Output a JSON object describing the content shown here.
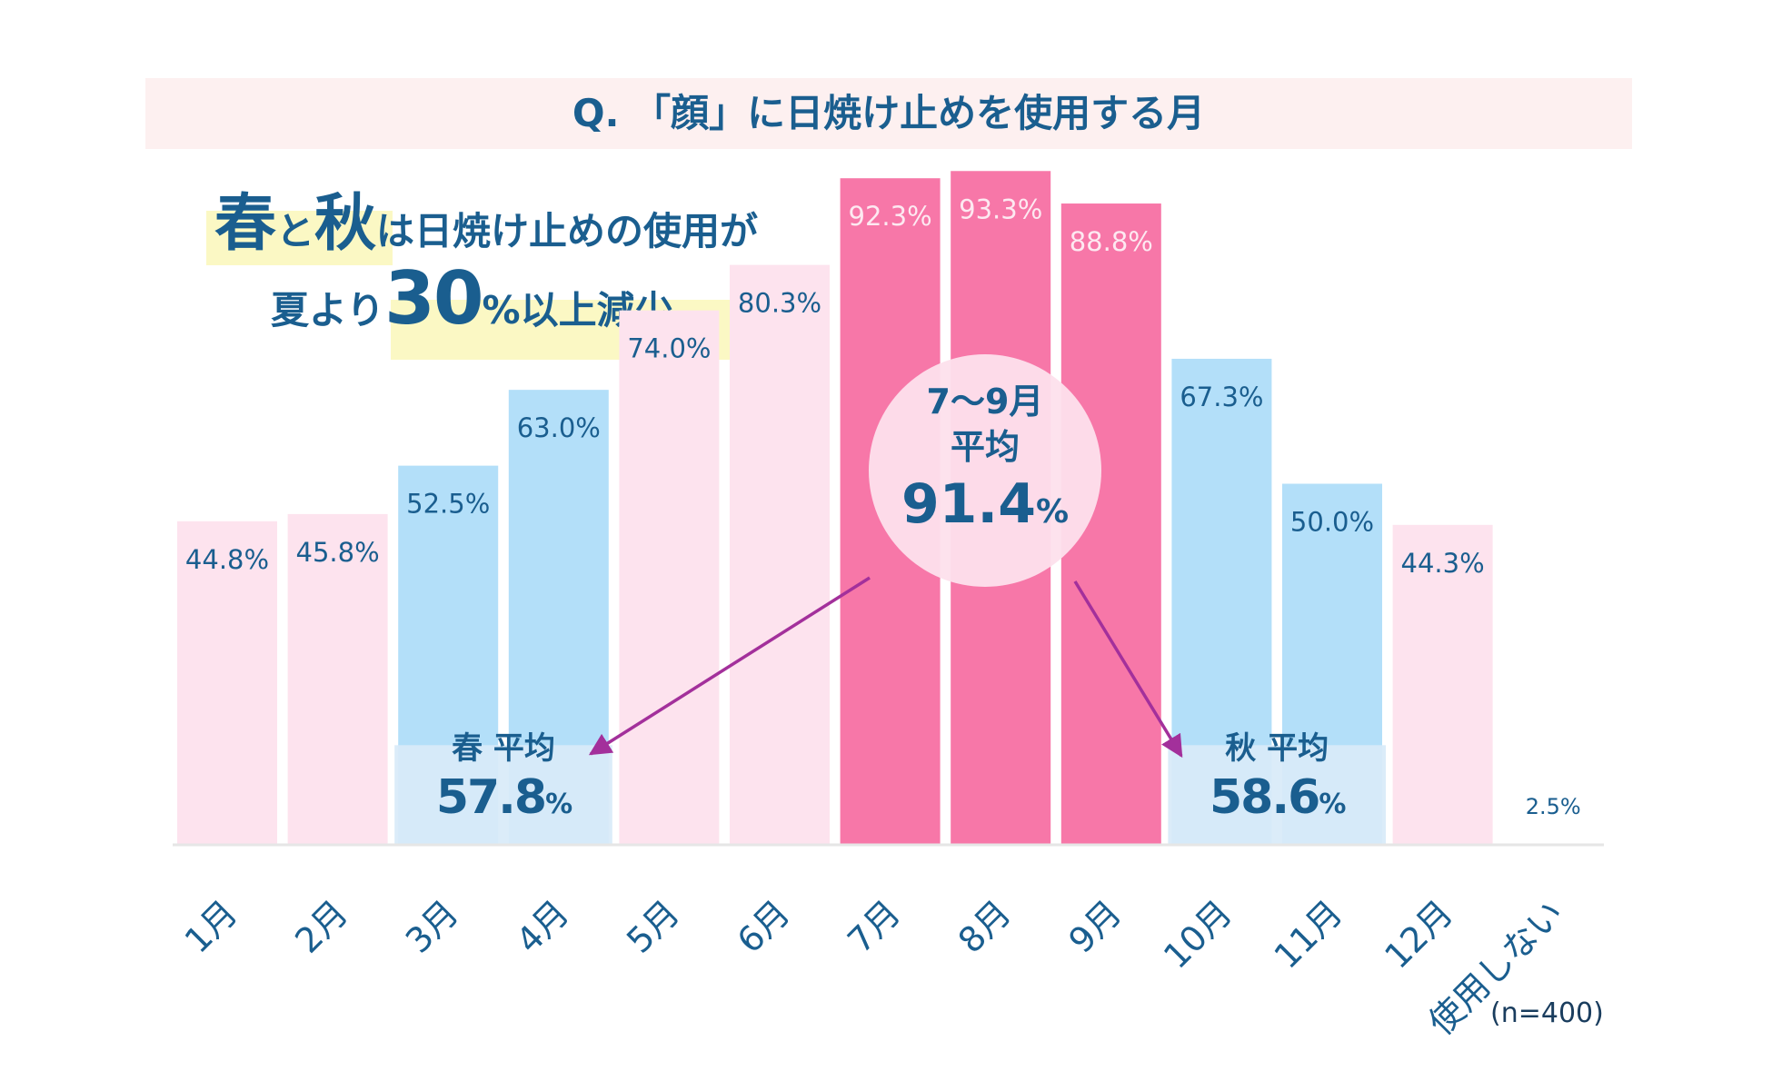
{
  "header": {
    "question": "Q. 「顔」に日焼け止めを使用する月"
  },
  "headline": {
    "line1_a": "春",
    "line1_b": "と",
    "line1_c": "秋",
    "line1_d": "は日焼け止めの使用が",
    "line2_a": "夏より",
    "line2_b": "30",
    "line2_c": "%以上減少"
  },
  "note": "(n=400)",
  "colors": {
    "summer": "#f777a8",
    "spring_autumn": "#b3dff9",
    "other": "#fde3ee",
    "avg_panel": "#d8ebf9",
    "text": "#1a5e8f",
    "summer_label": "#fde9f1",
    "arrow": "#a3309b",
    "circle": "#fde0ec",
    "baseline": "#e6e6e6"
  },
  "chart_data": {
    "type": "bar",
    "title": "Q. 「顔」に日焼け止めを使用する月",
    "categories": [
      "1月",
      "2月",
      "3月",
      "4月",
      "5月",
      "6月",
      "7月",
      "8月",
      "9月",
      "10月",
      "11月",
      "12月",
      "使用しない"
    ],
    "values": [
      44.8,
      45.8,
      52.5,
      63.0,
      74.0,
      80.3,
      92.3,
      93.3,
      88.8,
      67.3,
      50.0,
      44.3,
      2.5
    ],
    "value_labels": [
      "44.8%",
      "45.8%",
      "52.5%",
      "63.0%",
      "74.0%",
      "80.3%",
      "92.3%",
      "93.3%",
      "88.8%",
      "67.3%",
      "50.0%",
      "44.3%",
      "2.5%"
    ],
    "groups": [
      "other",
      "other",
      "spring_autumn",
      "spring_autumn",
      "other",
      "other",
      "summer",
      "summer",
      "summer",
      "spring_autumn",
      "spring_autumn",
      "other",
      "none"
    ],
    "ylim": [
      0,
      100
    ],
    "grid": false,
    "legend": "none",
    "annotations": {
      "summer_avg": {
        "line1": "7〜9月",
        "line2": "平均",
        "value": "91.4",
        "unit": "%"
      },
      "spring_avg": {
        "label": "春 平均",
        "value": "57.8",
        "unit": "%"
      },
      "autumn_avg": {
        "label": "秋 平均",
        "value": "58.6",
        "unit": "%"
      }
    }
  }
}
